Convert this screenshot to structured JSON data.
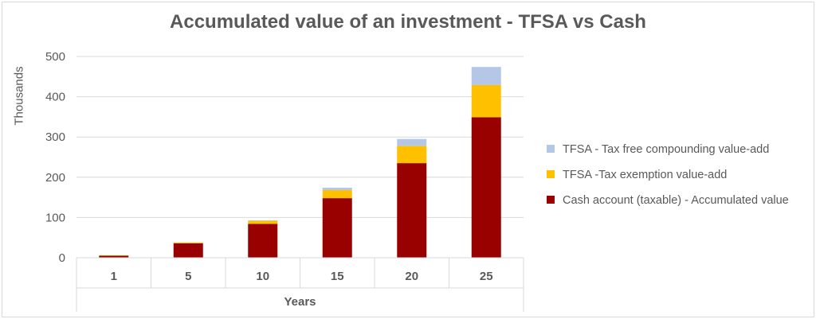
{
  "chart_data": {
    "type": "bar",
    "stacked": true,
    "title": "Accumulated value of an investment - TFSA vs Cash",
    "xlabel": "Years",
    "ylabel": "Thousands",
    "categories": [
      "1",
      "5",
      "10",
      "15",
      "20",
      "25"
    ],
    "ylim": [
      0,
      500
    ],
    "yticks": [
      0,
      100,
      200,
      300,
      400,
      500
    ],
    "grid": true,
    "legend_position": "right",
    "series": [
      {
        "name": "Cash account (taxable) - Accumulated value",
        "color": "#990000",
        "values": [
          5,
          36,
          84,
          148,
          235,
          349
        ]
      },
      {
        "name": "TFSA -Tax exemption value-add",
        "color": "#ffc000",
        "values": [
          1,
          2,
          8,
          20,
          43,
          80
        ]
      },
      {
        "name": "TFSA - Tax free compounding value-add",
        "color": "#b4c7e7",
        "values": [
          0,
          0,
          1,
          6,
          17,
          45
        ]
      }
    ]
  }
}
